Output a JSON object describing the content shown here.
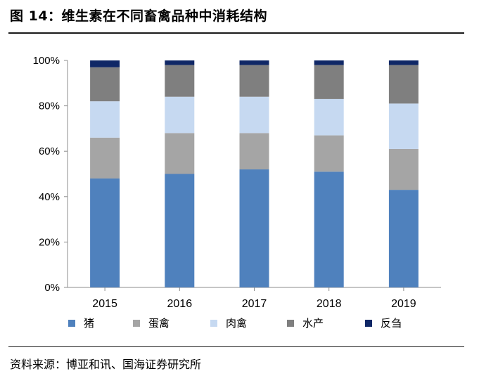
{
  "figure": {
    "title": "图 14：维生素在不同畜禽品种中消耗结构",
    "source": "资料来源：博亚和讯、国海证券研究所"
  },
  "chart_data": {
    "type": "bar",
    "stacked": true,
    "categories": [
      "2015",
      "2016",
      "2017",
      "2018",
      "2019"
    ],
    "ylim": [
      0,
      100
    ],
    "yticks": [
      "0%",
      "20%",
      "40%",
      "60%",
      "80%",
      "100%"
    ],
    "grid": false,
    "legend_position": "bottom",
    "series": [
      {
        "name": "猪",
        "color": "#4f81bd",
        "values": [
          48,
          50,
          52,
          51,
          43
        ]
      },
      {
        "name": "蛋禽",
        "color": "#a5a5a5",
        "values": [
          18,
          18,
          16,
          16,
          18
        ]
      },
      {
        "name": "肉禽",
        "color": "#c6d9f1",
        "values": [
          16,
          16,
          16,
          16,
          20
        ]
      },
      {
        "name": "水产",
        "color": "#7f7f7f",
        "values": [
          15,
          14,
          14,
          15,
          17
        ]
      },
      {
        "name": "反刍",
        "color": "#0f2766",
        "values": [
          3,
          2,
          2,
          2,
          2
        ]
      }
    ]
  }
}
